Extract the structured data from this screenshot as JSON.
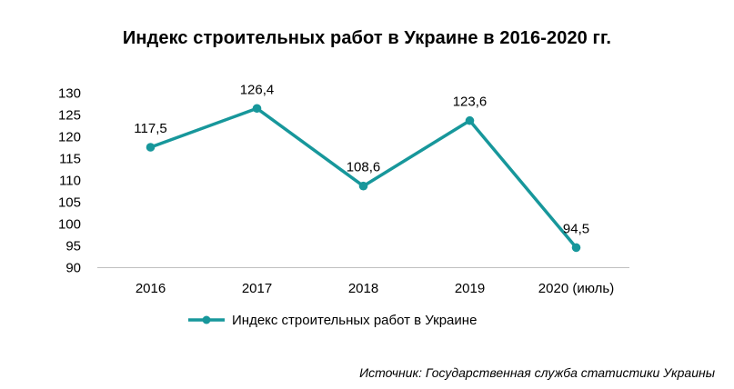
{
  "chart_data": {
    "type": "line",
    "title": "Индекс строительных работ в Украине в 2016-2020 гг.",
    "categories": [
      "2016",
      "2017",
      "2018",
      "2019",
      "2020 (июль)"
    ],
    "series": [
      {
        "name": "Индекс строительных работ в Украине",
        "values": [
          117.5,
          126.4,
          108.6,
          123.6,
          94.5
        ],
        "value_labels": [
          "117,5",
          "126,4",
          "108,6",
          "123,6",
          "94,5"
        ],
        "color": "#17979b"
      }
    ],
    "ylim": [
      90,
      130
    ],
    "yticks": [
      90,
      95,
      100,
      105,
      110,
      115,
      120,
      125,
      130
    ],
    "grid": false,
    "legend": "bottom",
    "axis_color": "#bfbfbf",
    "xlabel": "",
    "ylabel": ""
  },
  "source": "Источник: Государственная служба статистики Украины"
}
